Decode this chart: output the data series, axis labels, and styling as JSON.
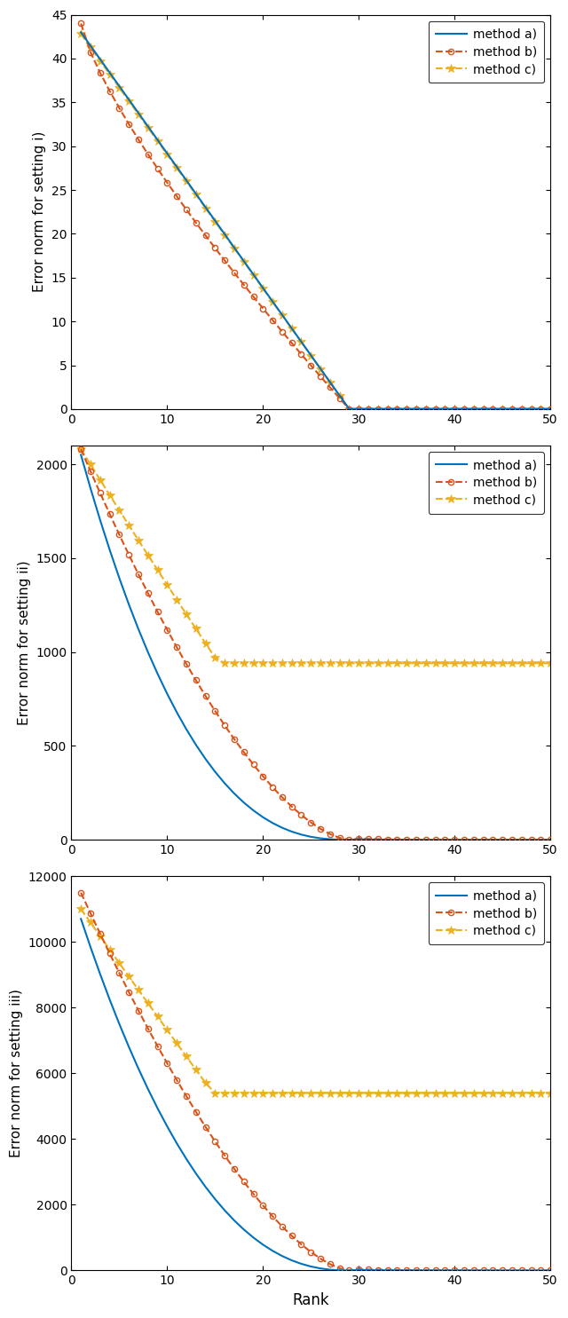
{
  "rank_max": 50,
  "color_a": "#0072BD",
  "color_b": "#D95319",
  "color_c": "#EDB120",
  "panel1": {
    "ylabel": "Error norm for setting i)",
    "ylim": [
      0,
      45
    ],
    "yticks": [
      0,
      5,
      10,
      15,
      20,
      25,
      30,
      35,
      40,
      45
    ],
    "true_rank": 29
  },
  "panel2": {
    "ylabel": "Error norm for setting ii)",
    "ylim": [
      0,
      2100
    ],
    "yticks": [
      0,
      500,
      1000,
      1500,
      2000
    ],
    "true_rank": 29,
    "c_floor": 940.0
  },
  "panel3": {
    "ylabel": "Error norm for setting iii)",
    "ylim": [
      0,
      12000
    ],
    "yticks": [
      0,
      2000,
      4000,
      6000,
      8000,
      10000,
      12000
    ],
    "true_rank": 29,
    "c_floor": 5400.0
  },
  "xlabel": "Rank",
  "legend_labels": [
    "method a)",
    "method b)",
    "method c)"
  ]
}
